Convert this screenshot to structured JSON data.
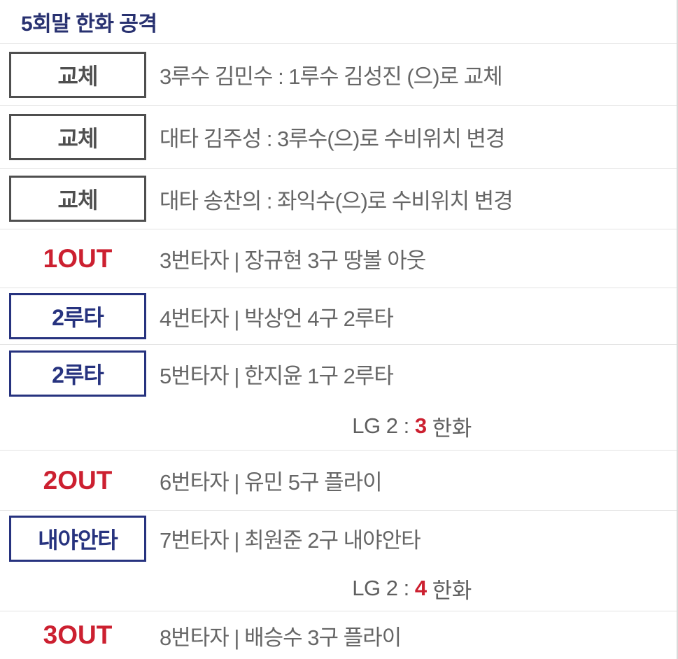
{
  "header": {
    "title": "5회말 한화 공격"
  },
  "colors": {
    "title_navy": "#283170",
    "badge_blue": "#27337f",
    "badge_gray": "#4f4f4f",
    "out_red": "#cc2030",
    "body_gray": "#666666",
    "divider": "#e3e3e3"
  },
  "rows": [
    {
      "kind": "event",
      "badge": {
        "label": "교체",
        "style": "gray-box"
      },
      "text": "3루수 김민수 : 1루수 김성진 (으)로 교체"
    },
    {
      "kind": "event",
      "badge": {
        "label": "교체",
        "style": "gray-box"
      },
      "text": "대타 김주성 : 3루수(으)로 수비위치 변경"
    },
    {
      "kind": "event",
      "badge": {
        "label": "교체",
        "style": "gray-box"
      },
      "text": "대타 송찬의 : 좌익수(으)로 수비위치 변경"
    },
    {
      "kind": "event",
      "badge": {
        "label": "1OUT",
        "style": "out-text"
      },
      "text": "3번타자 | 장규현 3구 땅볼 아웃"
    },
    {
      "kind": "event",
      "badge": {
        "label": "2루타",
        "style": "blue-box"
      },
      "text": "4번타자 | 박상언 4구 2루타"
    },
    {
      "kind": "event",
      "badge": {
        "label": "2루타",
        "style": "blue-box"
      },
      "text": "5번타자 | 한지윤 1구 2루타"
    },
    {
      "kind": "score",
      "left": "LG 2 : ",
      "home_score": "3",
      "right": " 한화"
    },
    {
      "kind": "event",
      "badge": {
        "label": "2OUT",
        "style": "out-text"
      },
      "text": "6번타자 | 유민 5구 플라이"
    },
    {
      "kind": "event",
      "badge": {
        "label": "내야안타",
        "style": "blue-box"
      },
      "text": "7번타자 | 최원준 2구 내야안타"
    },
    {
      "kind": "score",
      "left": "LG 2 : ",
      "home_score": "4",
      "right": " 한화"
    },
    {
      "kind": "event",
      "badge": {
        "label": "3OUT",
        "style": "out-text"
      },
      "text": "8번타자 | 배승수 3구 플라이"
    }
  ]
}
